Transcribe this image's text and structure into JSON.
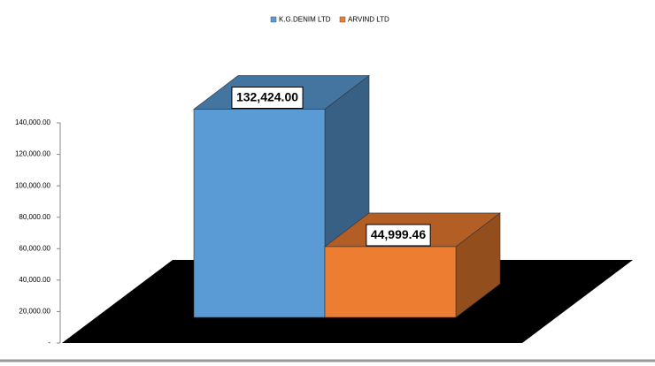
{
  "chart_data": {
    "type": "bar",
    "categories": [
      null
    ],
    "series": [
      {
        "name": "K.G.DENIM  LTD",
        "color": "#5b9bd5",
        "values": [
          132424
        ],
        "value_labels": [
          "132,424.00"
        ]
      },
      {
        "name": "ARVIND  LTD",
        "color": "#ed7d31",
        "values": [
          44999.46
        ],
        "value_labels": [
          "44,999.46"
        ]
      }
    ],
    "ylim": [
      0,
      140000
    ],
    "yticks": [
      {
        "value": 0,
        "label": "-"
      },
      {
        "value": 20000,
        "label": "20,000.00"
      },
      {
        "value": 40000,
        "label": "40,000.00"
      },
      {
        "value": 60000,
        "label": "60,000.00"
      },
      {
        "value": 80000,
        "label": "80,000.00"
      },
      {
        "value": 100000,
        "label": "100,000.00"
      },
      {
        "value": 120000,
        "label": "120,000.00"
      },
      {
        "value": 140000,
        "label": "140,000.00"
      }
    ]
  }
}
